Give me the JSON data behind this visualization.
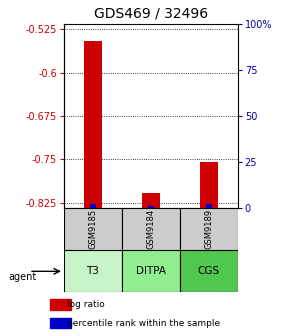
{
  "title": "GDS469 / 32496",
  "samples": [
    "GSM9185",
    "GSM9184",
    "GSM9189"
  ],
  "agents": [
    "T3",
    "DITPA",
    "CGS"
  ],
  "agent_colors": [
    "#c8f5c8",
    "#90ee90",
    "#50c850"
  ],
  "sample_bg_color": "#cccccc",
  "log_ratios": [
    -0.545,
    -0.808,
    -0.755
  ],
  "percentile_ranks": [
    2.5,
    1.5,
    2.5
  ],
  "ylim_left": [
    -0.835,
    -0.515
  ],
  "yticks_left": [
    -0.525,
    -0.6,
    -0.675,
    -0.75,
    -0.825
  ],
  "yticks_right": [
    100,
    75,
    50,
    25,
    0
  ],
  "red_color": "#cc0000",
  "blue_color": "#0000cc",
  "left_tick_color": "#cc0000",
  "right_tick_color": "#0000aa",
  "title_fontsize": 10,
  "tick_fontsize": 7,
  "legend_fontsize": 6.5
}
